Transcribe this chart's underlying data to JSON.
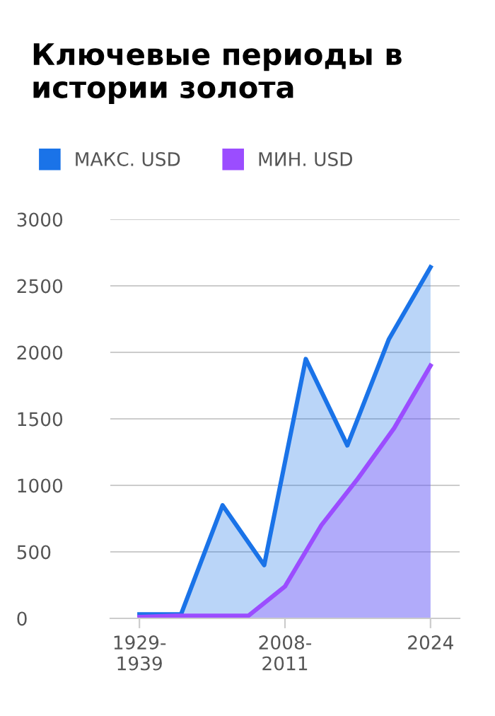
{
  "chart_data": {
    "type": "area",
    "title": "Ключевые периоды в истории золота",
    "categories": [
      "1929-\n1939",
      null,
      null,
      null,
      null,
      null,
      null,
      null,
      null,
      null,
      null,
      null,
      null,
      null,
      null,
      null,
      null,
      null,
      null,
      null,
      null,
      null,
      null,
      null,
      null,
      null,
      null,
      null,
      "2008-\n2011",
      null,
      null,
      null,
      null,
      null,
      null,
      null,
      null,
      null,
      null,
      null,
      null,
      null,
      null,
      null,
      null,
      null,
      null,
      null,
      null,
      null,
      null,
      null,
      null,
      null,
      null,
      null,
      "2024"
    ],
    "ylim": [
      0,
      3000
    ],
    "yticks": [
      0,
      500,
      1000,
      1500,
      2000,
      2500,
      3000
    ],
    "grid": "y",
    "legend": "top left",
    "series": [
      {
        "name": "МАКС. USD",
        "color": "#1a73e8",
        "values": [
          30,
          null,
          null,
          null,
          null,
          null,
          null,
          null,
          30,
          null,
          null,
          null,
          null,
          null,
          null,
          null,
          850,
          null,
          null,
          null,
          null,
          null,
          null,
          null,
          400,
          null,
          null,
          null,
          null,
          null,
          null,
          null,
          1950,
          null,
          null,
          null,
          null,
          null,
          null,
          null,
          1300,
          null,
          null,
          null,
          null,
          null,
          null,
          null,
          2100,
          null,
          null,
          null,
          null,
          null,
          null,
          null,
          2640
        ]
      },
      {
        "name": "МИН. USD",
        "color": "#9b4dff",
        "values": [
          10,
          null,
          null,
          null,
          null,
          null,
          null,
          20,
          null,
          null,
          null,
          null,
          null,
          null,
          20,
          null,
          null,
          null,
          null,
          null,
          null,
          20,
          null,
          null,
          null,
          null,
          null,
          null,
          240,
          null,
          null,
          null,
          null,
          null,
          null,
          700,
          null,
          null,
          null,
          null,
          null,
          null,
          1050,
          null,
          null,
          null,
          null,
          null,
          null,
          1430,
          null,
          null,
          null,
          null,
          null,
          null,
          1900
        ]
      }
    ]
  }
}
